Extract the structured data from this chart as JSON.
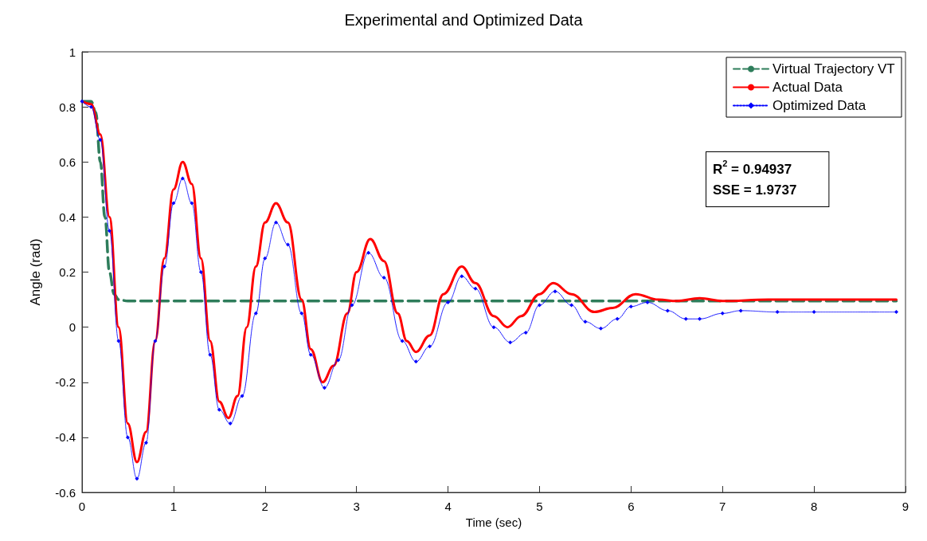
{
  "chart_data": {
    "type": "line",
    "title": "Experimental and Optimized Data",
    "xlabel": "Time (sec)",
    "ylabel": "Angle (rad)",
    "xlim": [
      0,
      9
    ],
    "xticks": [
      0,
      1,
      2,
      3,
      4,
      5,
      6,
      7,
      8,
      9
    ],
    "ylim": [
      -0.6,
      1
    ],
    "yticks": [
      -0.6,
      -0.4,
      -0.2,
      0,
      0.2,
      0.4,
      0.6,
      0.8,
      1
    ],
    "grid": false,
    "legend": "top right",
    "annotations": [
      "R$^{2}$ = 0.94937",
      "SSE = 1.9737"
    ],
    "series": [
      {
        "name": "Virtual Trajectory VT",
        "color": "#2e7d5b",
        "line_style": "dashed",
        "marker": "none",
        "x": [
          0,
          0.1,
          0.15,
          0.2,
          0.25,
          0.3,
          0.35,
          0.4,
          0.5,
          1,
          2,
          3,
          4,
          5,
          6,
          7,
          8,
          8.9
        ],
        "values": [
          0.82,
          0.82,
          0.78,
          0.6,
          0.4,
          0.2,
          0.12,
          0.1,
          0.095,
          0.095,
          0.095,
          0.095,
          0.095,
          0.095,
          0.095,
          0.095,
          0.095,
          0.095
        ]
      },
      {
        "name": "Actual Data",
        "color": "#ff0000",
        "line_style": "solid",
        "marker": "none",
        "x": [
          0,
          0.1,
          0.2,
          0.3,
          0.4,
          0.5,
          0.6,
          0.7,
          0.8,
          0.9,
          1.0,
          1.1,
          1.2,
          1.3,
          1.4,
          1.5,
          1.6,
          1.7,
          1.8,
          1.9,
          2.0,
          2.12,
          2.25,
          2.4,
          2.5,
          2.63,
          2.75,
          2.9,
          3.0,
          3.15,
          3.3,
          3.45,
          3.55,
          3.65,
          3.8,
          3.95,
          4.15,
          4.3,
          4.5,
          4.65,
          4.8,
          5.0,
          5.15,
          5.35,
          5.6,
          5.8,
          6.05,
          6.3,
          6.5,
          6.75,
          7.0,
          7.5,
          8.0,
          8.9
        ],
        "values": [
          0.82,
          0.81,
          0.7,
          0.4,
          0.0,
          -0.35,
          -0.49,
          -0.38,
          -0.05,
          0.25,
          0.5,
          0.6,
          0.52,
          0.25,
          -0.05,
          -0.27,
          -0.33,
          -0.25,
          0.0,
          0.22,
          0.38,
          0.45,
          0.38,
          0.1,
          -0.08,
          -0.2,
          -0.14,
          0.05,
          0.2,
          0.32,
          0.24,
          0.05,
          -0.05,
          -0.09,
          -0.03,
          0.12,
          0.22,
          0.16,
          0.04,
          0.0,
          0.04,
          0.12,
          0.16,
          0.12,
          0.055,
          0.07,
          0.12,
          0.1,
          0.095,
          0.105,
          0.095,
          0.1,
          0.1,
          0.1
        ]
      },
      {
        "name": "Optimized Data",
        "color": "#0000ff",
        "line_style": "dotted",
        "marker": "diamond",
        "x": [
          0,
          0.1,
          0.2,
          0.3,
          0.4,
          0.5,
          0.6,
          0.7,
          0.8,
          0.9,
          1.0,
          1.1,
          1.2,
          1.3,
          1.4,
          1.5,
          1.62,
          1.75,
          1.9,
          2.0,
          2.12,
          2.25,
          2.4,
          2.5,
          2.65,
          2.8,
          2.95,
          3.13,
          3.3,
          3.5,
          3.65,
          3.8,
          4.0,
          4.15,
          4.3,
          4.5,
          4.68,
          4.85,
          5.0,
          5.17,
          5.35,
          5.5,
          5.67,
          5.85,
          6.0,
          6.18,
          6.4,
          6.6,
          6.75,
          7.0,
          7.2,
          7.6,
          8.0,
          8.9
        ],
        "values": [
          0.82,
          0.8,
          0.68,
          0.35,
          -0.05,
          -0.4,
          -0.55,
          -0.42,
          -0.05,
          0.22,
          0.45,
          0.54,
          0.45,
          0.2,
          -0.1,
          -0.3,
          -0.35,
          -0.25,
          0.05,
          0.25,
          0.38,
          0.3,
          0.05,
          -0.1,
          -0.22,
          -0.12,
          0.08,
          0.27,
          0.18,
          -0.05,
          -0.125,
          -0.07,
          0.09,
          0.185,
          0.14,
          0.0,
          -0.055,
          -0.02,
          0.08,
          0.13,
          0.08,
          0.02,
          -0.005,
          0.03,
          0.075,
          0.09,
          0.06,
          0.03,
          0.03,
          0.05,
          0.06,
          0.055,
          0.055,
          0.055
        ]
      }
    ]
  }
}
